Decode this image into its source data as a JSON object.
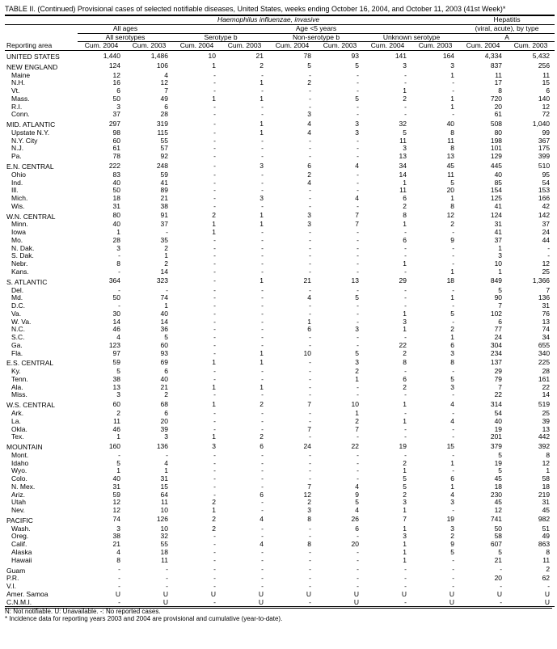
{
  "title": "TABLE II. (Continued) Provisional cases of selected notifiable diseases, United States, weeks ending October 16, 2004, and October 11, 2003 (41st Week)*",
  "header": {
    "super1": "Haemophilus influenzae, invasive",
    "super2": "Hepatitis",
    "age_all": "All ages",
    "age_u5": "Age <5 years",
    "hep_type": "(viral, acute), by type",
    "all_sero": "All serotypes",
    "sero_b": "Serotype b",
    "non_b": "Non-serotype b",
    "unk": "Unknown serotype",
    "hep_a": "A",
    "cum04": "Cum. 2004",
    "cum03": "Cum. 2003",
    "rep_area": "Reporting area"
  },
  "footnotes": {
    "line1": "N: Not notifiable.    U: Unavailable.         -: No reported cases.",
    "line2": "* Incidence data for reporting years 2003 and 2004 are provisional and cumulative (year-to-date)."
  },
  "rows": [
    {
      "area": "UNITED STATES",
      "lvl": 0,
      "sec": 1,
      "v": [
        "1,440",
        "1,486",
        "10",
        "21",
        "78",
        "93",
        "141",
        "164",
        "4,334",
        "5,432"
      ]
    },
    {
      "area": "NEW ENGLAND",
      "lvl": 0,
      "sec": 1,
      "v": [
        "124",
        "106",
        "1",
        "2",
        "5",
        "5",
        "3",
        "3",
        "837",
        "256"
      ]
    },
    {
      "area": "Maine",
      "lvl": 1,
      "v": [
        "12",
        "4",
        "-",
        "-",
        "-",
        "-",
        "-",
        "1",
        "11",
        "11"
      ]
    },
    {
      "area": "N.H.",
      "lvl": 1,
      "v": [
        "16",
        "12",
        "-",
        "1",
        "2",
        "-",
        "-",
        "-",
        "17",
        "15"
      ]
    },
    {
      "area": "Vt.",
      "lvl": 1,
      "v": [
        "6",
        "7",
        "-",
        "-",
        "-",
        "-",
        "1",
        "-",
        "8",
        "6"
      ]
    },
    {
      "area": "Mass.",
      "lvl": 1,
      "v": [
        "50",
        "49",
        "1",
        "1",
        "-",
        "5",
        "2",
        "1",
        "720",
        "140"
      ]
    },
    {
      "area": "R.I.",
      "lvl": 1,
      "v": [
        "3",
        "6",
        "-",
        "-",
        "-",
        "-",
        "-",
        "1",
        "20",
        "12"
      ]
    },
    {
      "area": "Conn.",
      "lvl": 1,
      "v": [
        "37",
        "28",
        "-",
        "-",
        "3",
        "-",
        "-",
        "-",
        "61",
        "72"
      ]
    },
    {
      "area": "MID. ATLANTIC",
      "lvl": 0,
      "sec": 1,
      "v": [
        "297",
        "319",
        "-",
        "1",
        "4",
        "3",
        "32",
        "40",
        "508",
        "1,040"
      ]
    },
    {
      "area": "Upstate N.Y.",
      "lvl": 1,
      "v": [
        "98",
        "115",
        "-",
        "1",
        "4",
        "3",
        "5",
        "8",
        "80",
        "99"
      ]
    },
    {
      "area": "N.Y. City",
      "lvl": 1,
      "v": [
        "60",
        "55",
        "-",
        "-",
        "-",
        "-",
        "11",
        "11",
        "198",
        "367"
      ]
    },
    {
      "area": "N.J.",
      "lvl": 1,
      "v": [
        "61",
        "57",
        "-",
        "-",
        "-",
        "-",
        "3",
        "8",
        "101",
        "175"
      ]
    },
    {
      "area": "Pa.",
      "lvl": 1,
      "v": [
        "78",
        "92",
        "-",
        "-",
        "-",
        "-",
        "13",
        "13",
        "129",
        "399"
      ]
    },
    {
      "area": "E.N. CENTRAL",
      "lvl": 0,
      "sec": 1,
      "v": [
        "222",
        "248",
        "-",
        "3",
        "6",
        "4",
        "34",
        "45",
        "445",
        "510"
      ]
    },
    {
      "area": "Ohio",
      "lvl": 1,
      "v": [
        "83",
        "59",
        "-",
        "-",
        "2",
        "-",
        "14",
        "11",
        "40",
        "95"
      ]
    },
    {
      "area": "Ind.",
      "lvl": 1,
      "v": [
        "40",
        "41",
        "-",
        "-",
        "4",
        "-",
        "1",
        "5",
        "85",
        "54"
      ]
    },
    {
      "area": "Ill.",
      "lvl": 1,
      "v": [
        "50",
        "89",
        "-",
        "-",
        "-",
        "-",
        "11",
        "20",
        "154",
        "153"
      ]
    },
    {
      "area": "Mich.",
      "lvl": 1,
      "v": [
        "18",
        "21",
        "-",
        "3",
        "-",
        "4",
        "6",
        "1",
        "125",
        "166"
      ]
    },
    {
      "area": "Wis.",
      "lvl": 1,
      "v": [
        "31",
        "38",
        "-",
        "-",
        "-",
        "-",
        "2",
        "8",
        "41",
        "42"
      ]
    },
    {
      "area": "W.N. CENTRAL",
      "lvl": 0,
      "sec": 1,
      "v": [
        "80",
        "91",
        "2",
        "1",
        "3",
        "7",
        "8",
        "12",
        "124",
        "142"
      ]
    },
    {
      "area": "Minn.",
      "lvl": 1,
      "v": [
        "40",
        "37",
        "1",
        "1",
        "3",
        "7",
        "1",
        "2",
        "31",
        "37"
      ]
    },
    {
      "area": "Iowa",
      "lvl": 1,
      "v": [
        "1",
        "-",
        "1",
        "-",
        "-",
        "-",
        "-",
        "-",
        "41",
        "24"
      ]
    },
    {
      "area": "Mo.",
      "lvl": 1,
      "v": [
        "28",
        "35",
        "-",
        "-",
        "-",
        "-",
        "6",
        "9",
        "37",
        "44"
      ]
    },
    {
      "area": "N. Dak.",
      "lvl": 1,
      "v": [
        "3",
        "2",
        "-",
        "-",
        "-",
        "-",
        "-",
        "-",
        "1",
        "-"
      ]
    },
    {
      "area": "S. Dak.",
      "lvl": 1,
      "v": [
        "-",
        "1",
        "-",
        "-",
        "-",
        "-",
        "-",
        "-",
        "3",
        "-"
      ]
    },
    {
      "area": "Nebr.",
      "lvl": 1,
      "v": [
        "8",
        "2",
        "-",
        "-",
        "-",
        "-",
        "1",
        "-",
        "10",
        "12"
      ]
    },
    {
      "area": "Kans.",
      "lvl": 1,
      "v": [
        "-",
        "14",
        "-",
        "-",
        "-",
        "-",
        "-",
        "1",
        "1",
        "25"
      ]
    },
    {
      "area": "S. ATLANTIC",
      "lvl": 0,
      "sec": 1,
      "v": [
        "364",
        "323",
        "-",
        "1",
        "21",
        "13",
        "29",
        "18",
        "849",
        "1,366"
      ]
    },
    {
      "area": "Del.",
      "lvl": 1,
      "v": [
        "-",
        "-",
        "-",
        "-",
        "-",
        "-",
        "-",
        "-",
        "5",
        "7"
      ]
    },
    {
      "area": "Md.",
      "lvl": 1,
      "v": [
        "50",
        "74",
        "-",
        "-",
        "4",
        "5",
        "-",
        "1",
        "90",
        "136"
      ]
    },
    {
      "area": "D.C.",
      "lvl": 1,
      "v": [
        "-",
        "1",
        "-",
        "-",
        "-",
        "-",
        "-",
        "-",
        "7",
        "31"
      ]
    },
    {
      "area": "Va.",
      "lvl": 1,
      "v": [
        "30",
        "40",
        "-",
        "-",
        "-",
        "-",
        "1",
        "5",
        "102",
        "76"
      ]
    },
    {
      "area": "W. Va.",
      "lvl": 1,
      "v": [
        "14",
        "14",
        "-",
        "-",
        "1",
        "-",
        "3",
        "-",
        "6",
        "13"
      ]
    },
    {
      "area": "N.C.",
      "lvl": 1,
      "v": [
        "46",
        "36",
        "-",
        "-",
        "6",
        "3",
        "1",
        "2",
        "77",
        "74"
      ]
    },
    {
      "area": "S.C.",
      "lvl": 1,
      "v": [
        "4",
        "5",
        "-",
        "-",
        "-",
        "-",
        "-",
        "1",
        "24",
        "34"
      ]
    },
    {
      "area": "Ga.",
      "lvl": 1,
      "v": [
        "123",
        "60",
        "-",
        "-",
        "-",
        "-",
        "22",
        "6",
        "304",
        "655"
      ]
    },
    {
      "area": "Fla.",
      "lvl": 1,
      "v": [
        "97",
        "93",
        "-",
        "1",
        "10",
        "5",
        "2",
        "3",
        "234",
        "340"
      ]
    },
    {
      "area": "E.S. CENTRAL",
      "lvl": 0,
      "sec": 1,
      "v": [
        "59",
        "69",
        "1",
        "1",
        "-",
        "3",
        "8",
        "8",
        "137",
        "225"
      ]
    },
    {
      "area": "Ky.",
      "lvl": 1,
      "v": [
        "5",
        "6",
        "-",
        "-",
        "-",
        "2",
        "-",
        "-",
        "29",
        "28"
      ]
    },
    {
      "area": "Tenn.",
      "lvl": 1,
      "v": [
        "38",
        "40",
        "-",
        "-",
        "-",
        "1",
        "6",
        "5",
        "79",
        "161"
      ]
    },
    {
      "area": "Ala.",
      "lvl": 1,
      "v": [
        "13",
        "21",
        "1",
        "1",
        "-",
        "-",
        "2",
        "3",
        "7",
        "22"
      ]
    },
    {
      "area": "Miss.",
      "lvl": 1,
      "v": [
        "3",
        "2",
        "-",
        "-",
        "-",
        "-",
        "-",
        "-",
        "22",
        "14"
      ]
    },
    {
      "area": "W.S. CENTRAL",
      "lvl": 0,
      "sec": 1,
      "v": [
        "60",
        "68",
        "1",
        "2",
        "7",
        "10",
        "1",
        "4",
        "314",
        "519"
      ]
    },
    {
      "area": "Ark.",
      "lvl": 1,
      "v": [
        "2",
        "6",
        "-",
        "-",
        "-",
        "1",
        "-",
        "-",
        "54",
        "25"
      ]
    },
    {
      "area": "La.",
      "lvl": 1,
      "v": [
        "11",
        "20",
        "-",
        "-",
        "-",
        "2",
        "1",
        "4",
        "40",
        "39"
      ]
    },
    {
      "area": "Okla.",
      "lvl": 1,
      "v": [
        "46",
        "39",
        "-",
        "-",
        "7",
        "7",
        "-",
        "-",
        "19",
        "13"
      ]
    },
    {
      "area": "Tex.",
      "lvl": 1,
      "v": [
        "1",
        "3",
        "1",
        "2",
        "-",
        "-",
        "-",
        "-",
        "201",
        "442"
      ]
    },
    {
      "area": "MOUNTAIN",
      "lvl": 0,
      "sec": 1,
      "v": [
        "160",
        "136",
        "3",
        "6",
        "24",
        "22",
        "19",
        "15",
        "379",
        "392"
      ]
    },
    {
      "area": "Mont.",
      "lvl": 1,
      "v": [
        "-",
        "-",
        "-",
        "-",
        "-",
        "-",
        "-",
        "-",
        "5",
        "8"
      ]
    },
    {
      "area": "Idaho",
      "lvl": 1,
      "v": [
        "5",
        "4",
        "-",
        "-",
        "-",
        "-",
        "2",
        "1",
        "19",
        "12"
      ]
    },
    {
      "area": "Wyo.",
      "lvl": 1,
      "v": [
        "1",
        "1",
        "-",
        "-",
        "-",
        "-",
        "1",
        "-",
        "5",
        "1"
      ]
    },
    {
      "area": "Colo.",
      "lvl": 1,
      "v": [
        "40",
        "31",
        "-",
        "-",
        "-",
        "-",
        "5",
        "6",
        "45",
        "58"
      ]
    },
    {
      "area": "N. Mex.",
      "lvl": 1,
      "v": [
        "31",
        "15",
        "-",
        "-",
        "7",
        "4",
        "5",
        "1",
        "18",
        "18"
      ]
    },
    {
      "area": "Ariz.",
      "lvl": 1,
      "v": [
        "59",
        "64",
        "-",
        "6",
        "12",
        "9",
        "2",
        "4",
        "230",
        "219"
      ]
    },
    {
      "area": "Utah",
      "lvl": 1,
      "v": [
        "12",
        "11",
        "2",
        "-",
        "2",
        "5",
        "3",
        "3",
        "45",
        "31"
      ]
    },
    {
      "area": "Nev.",
      "lvl": 1,
      "v": [
        "12",
        "10",
        "1",
        "-",
        "3",
        "4",
        "1",
        "-",
        "12",
        "45"
      ]
    },
    {
      "area": "PACIFIC",
      "lvl": 0,
      "sec": 1,
      "v": [
        "74",
        "126",
        "2",
        "4",
        "8",
        "26",
        "7",
        "19",
        "741",
        "982"
      ]
    },
    {
      "area": "Wash.",
      "lvl": 1,
      "v": [
        "3",
        "10",
        "2",
        "-",
        "-",
        "6",
        "1",
        "3",
        "50",
        "51"
      ]
    },
    {
      "area": "Oreg.",
      "lvl": 1,
      "v": [
        "38",
        "32",
        "-",
        "-",
        "-",
        "-",
        "3",
        "2",
        "58",
        "49"
      ]
    },
    {
      "area": "Calif.",
      "lvl": 1,
      "v": [
        "21",
        "55",
        "-",
        "4",
        "8",
        "20",
        "1",
        "9",
        "607",
        "863"
      ]
    },
    {
      "area": "Alaska",
      "lvl": 1,
      "v": [
        "4",
        "18",
        "-",
        "-",
        "-",
        "-",
        "1",
        "5",
        "5",
        "8"
      ]
    },
    {
      "area": "Hawaii",
      "lvl": 1,
      "v": [
        "8",
        "11",
        "-",
        "-",
        "-",
        "-",
        "1",
        "-",
        "21",
        "11"
      ]
    },
    {
      "area": "Guam",
      "lvl": 0,
      "sec": 1,
      "v": [
        "-",
        "-",
        "-",
        "-",
        "-",
        "-",
        "-",
        "-",
        "-",
        "2"
      ]
    },
    {
      "area": "P.R.",
      "lvl": 0,
      "v": [
        "-",
        "-",
        "-",
        "-",
        "-",
        "-",
        "-",
        "-",
        "20",
        "62"
      ]
    },
    {
      "area": "V.I.",
      "lvl": 0,
      "v": [
        "-",
        "-",
        "-",
        "-",
        "-",
        "-",
        "-",
        "-",
        "-",
        "-"
      ]
    },
    {
      "area": "Amer. Samoa",
      "lvl": 0,
      "v": [
        "U",
        "U",
        "U",
        "U",
        "U",
        "U",
        "U",
        "U",
        "U",
        "U"
      ]
    },
    {
      "area": "C.N.M.I.",
      "lvl": 0,
      "v": [
        "-",
        "U",
        "-",
        "U",
        "-",
        "U",
        "-",
        "U",
        "-",
        "U"
      ]
    }
  ]
}
